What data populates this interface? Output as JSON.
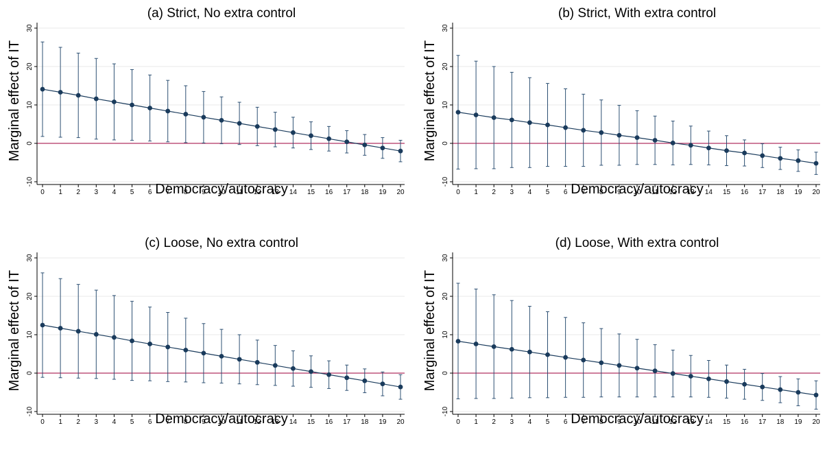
{
  "figure": {
    "panels": [
      {
        "title": "(a) Strict, No extra control"
      },
      {
        "title": "(b) Strict, With extra control"
      },
      {
        "title": "(c) Loose, No extra control"
      },
      {
        "title": "(d) Loose, With extra control"
      }
    ]
  },
  "colors": {
    "marker": "#1a3b5c",
    "line": "#1a3b5c",
    "error_bar": "#2d5073",
    "zero_line": "#b03060",
    "grid": "#eaeaea",
    "axis": "#000000"
  },
  "chart_data": [
    {
      "type": "line",
      "subtype": "point estimates with confidence interval error bars",
      "title": "(a) Strict, No extra control",
      "xlabel": "Democracy/autocracy",
      "ylabel": "Marginal effect of IT",
      "x": [
        0,
        1,
        2,
        3,
        4,
        5,
        6,
        7,
        8,
        9,
        10,
        11,
        12,
        13,
        14,
        15,
        16,
        17,
        18,
        19,
        20
      ],
      "xticks": [
        "0",
        "1",
        "2",
        "3",
        "4",
        "5",
        "6",
        "7",
        "8",
        "9",
        "10",
        "11",
        "12",
        "13",
        "14",
        "15",
        "16",
        "17",
        "18",
        "19",
        "20"
      ],
      "yticks": [
        "-10",
        "0",
        "10",
        "20",
        "30"
      ],
      "ylim": [
        -10,
        30
      ],
      "grid": "horizontal",
      "reference_line": 0,
      "series": [
        {
          "estimate": [
            14.1,
            13.3,
            12.5,
            11.6,
            10.8,
            10.0,
            9.2,
            8.4,
            7.6,
            6.8,
            6.0,
            5.2,
            4.4,
            3.6,
            2.8,
            2.0,
            1.2,
            0.4,
            -0.4,
            -1.2,
            -2.0
          ],
          "upper": [
            26.4,
            25.0,
            23.5,
            22.1,
            20.7,
            19.2,
            17.8,
            16.4,
            15.0,
            13.5,
            12.1,
            10.7,
            9.4,
            8.1,
            6.8,
            5.6,
            4.4,
            3.3,
            2.3,
            1.5,
            0.8
          ],
          "lower": [
            1.8,
            1.6,
            1.5,
            1.1,
            0.9,
            0.8,
            0.6,
            0.4,
            0.2,
            0.1,
            -0.1,
            -0.3,
            -0.6,
            -0.9,
            -1.2,
            -1.6,
            -2.0,
            -2.5,
            -3.1,
            -3.9,
            -4.8
          ]
        }
      ]
    },
    {
      "type": "line",
      "subtype": "point estimates with confidence interval error bars",
      "title": "(b) Strict, With extra control",
      "xlabel": "Democracy/autocracy",
      "ylabel": "Marginal effect of IT",
      "x": [
        0,
        1,
        2,
        3,
        4,
        5,
        6,
        7,
        8,
        9,
        10,
        11,
        12,
        13,
        14,
        15,
        16,
        17,
        18,
        19,
        20
      ],
      "xticks": [
        "0",
        "1",
        "2",
        "3",
        "4",
        "5",
        "6",
        "7",
        "8",
        "9",
        "10",
        "11",
        "12",
        "13",
        "14",
        "15",
        "16",
        "17",
        "18",
        "19",
        "20"
      ],
      "yticks": [
        "-10",
        "0",
        "10",
        "20",
        "30"
      ],
      "ylim": [
        -10,
        30
      ],
      "grid": "horizontal",
      "reference_line": 0,
      "series": [
        {
          "estimate": [
            8.1,
            7.4,
            6.7,
            6.1,
            5.4,
            4.8,
            4.1,
            3.4,
            2.8,
            2.1,
            1.5,
            0.8,
            0.1,
            -0.5,
            -1.2,
            -1.9,
            -2.5,
            -3.2,
            -3.9,
            -4.5,
            -5.2
          ],
          "upper": [
            22.9,
            21.4,
            20.0,
            18.5,
            17.1,
            15.6,
            14.2,
            12.8,
            11.3,
            9.9,
            8.5,
            7.1,
            5.8,
            4.5,
            3.2,
            2.0,
            0.9,
            -0.1,
            -1.0,
            -1.7,
            -2.3
          ],
          "lower": [
            -6.7,
            -6.6,
            -6.6,
            -6.3,
            -6.3,
            -6.0,
            -6.0,
            -6.0,
            -5.7,
            -5.7,
            -5.5,
            -5.5,
            -5.6,
            -5.5,
            -5.6,
            -5.8,
            -5.9,
            -6.3,
            -6.8,
            -7.3,
            -8.1
          ]
        }
      ]
    },
    {
      "type": "line",
      "subtype": "point estimates with confidence interval error bars",
      "title": "(c) Loose, No extra control",
      "xlabel": "Democracy/autocracy",
      "ylabel": "Marginal effect of IT",
      "x": [
        0,
        1,
        2,
        3,
        4,
        5,
        6,
        7,
        8,
        9,
        10,
        11,
        12,
        13,
        14,
        15,
        16,
        17,
        18,
        19,
        20
      ],
      "xticks": [
        "0",
        "1",
        "2",
        "3",
        "4",
        "5",
        "6",
        "7",
        "8",
        "9",
        "10",
        "11",
        "12",
        "13",
        "14",
        "15",
        "16",
        "17",
        "18",
        "19",
        "20"
      ],
      "yticks": [
        "-10",
        "0",
        "10",
        "20",
        "30"
      ],
      "ylim": [
        -10,
        30
      ],
      "grid": "horizontal",
      "reference_line": 0,
      "series": [
        {
          "estimate": [
            12.5,
            11.7,
            10.9,
            10.1,
            9.3,
            8.4,
            7.6,
            6.8,
            6.0,
            5.2,
            4.4,
            3.6,
            2.8,
            2.0,
            1.2,
            0.4,
            -0.4,
            -1.2,
            -2.0,
            -2.8,
            -3.6
          ],
          "upper": [
            26.1,
            24.6,
            23.1,
            21.6,
            20.2,
            18.7,
            17.2,
            15.8,
            14.3,
            12.9,
            11.4,
            10.0,
            8.6,
            7.2,
            5.8,
            4.5,
            3.2,
            2.1,
            1.1,
            0.3,
            -0.4
          ],
          "lower": [
            -1.1,
            -1.2,
            -1.3,
            -1.4,
            -1.6,
            -1.9,
            -2.0,
            -2.2,
            -2.3,
            -2.5,
            -2.6,
            -2.8,
            -3.0,
            -3.2,
            -3.4,
            -3.7,
            -4.0,
            -4.5,
            -5.1,
            -5.9,
            -6.8
          ]
        }
      ]
    },
    {
      "type": "line",
      "subtype": "point estimates with confidence interval error bars",
      "title": "(d) Loose, With extra control",
      "xlabel": "Democracy/autocracy",
      "ylabel": "Marginal effect of IT",
      "x": [
        0,
        1,
        2,
        3,
        4,
        5,
        6,
        7,
        8,
        9,
        10,
        11,
        12,
        13,
        14,
        15,
        16,
        17,
        18,
        19,
        20
      ],
      "xticks": [
        "0",
        "1",
        "2",
        "3",
        "4",
        "5",
        "6",
        "7",
        "8",
        "9",
        "10",
        "11",
        "12",
        "13",
        "14",
        "15",
        "16",
        "17",
        "18",
        "19",
        "20"
      ],
      "yticks": [
        "-10",
        "0",
        "10",
        "20",
        "30"
      ],
      "ylim": [
        -10,
        30
      ],
      "grid": "horizontal",
      "reference_line": 0,
      "series": [
        {
          "estimate": [
            8.3,
            7.6,
            6.9,
            6.2,
            5.5,
            4.8,
            4.1,
            3.4,
            2.7,
            2.0,
            1.3,
            0.6,
            -0.1,
            -0.8,
            -1.5,
            -2.2,
            -2.9,
            -3.6,
            -4.3,
            -5.0,
            -5.7
          ],
          "upper": [
            23.4,
            21.9,
            20.4,
            18.9,
            17.4,
            16.0,
            14.5,
            13.1,
            11.6,
            10.2,
            8.8,
            7.4,
            6.0,
            4.6,
            3.3,
            2.1,
            1.0,
            -0.1,
            -0.9,
            -1.5,
            -2.0
          ],
          "lower": [
            -6.7,
            -6.6,
            -6.6,
            -6.5,
            -6.4,
            -6.4,
            -6.3,
            -6.3,
            -6.2,
            -6.2,
            -6.2,
            -6.2,
            -6.2,
            -6.2,
            -6.3,
            -6.5,
            -6.8,
            -7.1,
            -7.7,
            -8.5,
            -9.4
          ]
        }
      ]
    }
  ]
}
